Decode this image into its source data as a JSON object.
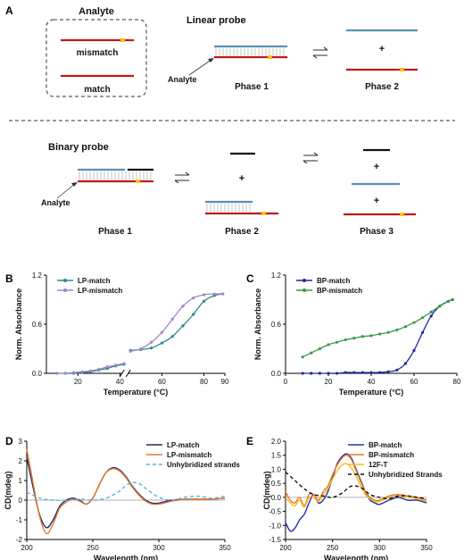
{
  "panels": {
    "A": "A",
    "B": "B",
    "C": "C",
    "D": "D",
    "E": "E"
  },
  "schematic": {
    "analyte_title": "Analyte",
    "mismatch": "mismatch",
    "match": "match",
    "linear_probe": "Linear probe",
    "binary_probe": "Binary probe",
    "analyte_label": "Analyte",
    "phase1": "Phase 1",
    "phase2": "Phase 2",
    "phase3": "Phase 3",
    "plus": "+",
    "colors": {
      "red": "#c0171c",
      "blue": "#5a8fb5",
      "black": "#111111",
      "yellow": "#f2c316"
    }
  },
  "chart_data": [
    {
      "id": "B",
      "type": "scatter",
      "xlabel": "Temperature (°C)",
      "ylabel": "Norm. Absorbance",
      "ylim": [
        0,
        1.2
      ],
      "xticks": [
        "20",
        "40",
        "60",
        "80",
        "90"
      ],
      "yticks": [
        "0.0",
        "0.6",
        "1.2"
      ],
      "legend_position": "top-left",
      "series": [
        {
          "name": "LP-match",
          "color": "#2a8a8c",
          "x": [
            10,
            14,
            18,
            22,
            26,
            30,
            34,
            38,
            42,
            45,
            50,
            55,
            60,
            65,
            70,
            75,
            80,
            85,
            89
          ],
          "y": [
            0.0,
            0.0,
            0.0,
            0.01,
            0.02,
            0.04,
            0.06,
            0.09,
            0.11,
            0.28,
            0.29,
            0.31,
            0.37,
            0.45,
            0.58,
            0.72,
            0.88,
            0.95,
            0.97
          ]
        },
        {
          "name": "LP-mismatch",
          "color": "#9a88c8",
          "x": [
            10,
            14,
            18,
            22,
            26,
            30,
            34,
            38,
            42,
            45,
            50,
            55,
            60,
            65,
            70,
            75,
            80,
            85,
            89
          ],
          "y": [
            0.0,
            0.0,
            0.01,
            0.02,
            0.03,
            0.05,
            0.08,
            0.1,
            0.12,
            0.27,
            0.3,
            0.38,
            0.5,
            0.66,
            0.82,
            0.92,
            0.96,
            0.97,
            0.97
          ]
        }
      ]
    },
    {
      "id": "C",
      "type": "scatter",
      "xlabel": "Temperature (°C)",
      "ylabel": "Norm. Absorbance",
      "xlim": [
        0,
        80
      ],
      "ylim": [
        0,
        1.2
      ],
      "xticks": [
        "0",
        "20",
        "40",
        "60",
        "80"
      ],
      "yticks": [
        "0.0",
        "0.6",
        "1.2"
      ],
      "legend_position": "top-left",
      "series": [
        {
          "name": "BP-match",
          "color": "#1f2a9a",
          "x": [
            8,
            12,
            16,
            20,
            24,
            28,
            32,
            36,
            40,
            44,
            48,
            52,
            56,
            60,
            64,
            68,
            72,
            76,
            78
          ],
          "y": [
            0.0,
            0.0,
            0.0,
            0.0,
            0.0,
            0.01,
            0.01,
            0.01,
            0.01,
            0.01,
            0.02,
            0.04,
            0.12,
            0.28,
            0.5,
            0.7,
            0.82,
            0.88,
            0.9
          ]
        },
        {
          "name": "BP-mismatch",
          "color": "#3a9a4a",
          "x": [
            8,
            12,
            16,
            20,
            24,
            28,
            32,
            36,
            40,
            44,
            48,
            52,
            56,
            60,
            64,
            68,
            72,
            76,
            78
          ],
          "y": [
            0.2,
            0.25,
            0.3,
            0.35,
            0.38,
            0.41,
            0.43,
            0.45,
            0.46,
            0.48,
            0.5,
            0.53,
            0.57,
            0.62,
            0.68,
            0.75,
            0.82,
            0.88,
            0.9
          ]
        }
      ]
    },
    {
      "id": "D",
      "type": "line",
      "xlabel": "Wavelength (nm)",
      "ylabel": "CD(mdeg)",
      "xlim": [
        200,
        350
      ],
      "ylim": [
        -2,
        3
      ],
      "xticks": [
        "200",
        "250",
        "300",
        "350"
      ],
      "yticks": [
        "-2",
        "-1",
        "0",
        "1",
        "2",
        "3"
      ],
      "legend_position": "top-right",
      "series": [
        {
          "name": "LP-match",
          "color": "#1f2a6e",
          "dash": false,
          "x": [
            200,
            205,
            210,
            215,
            220,
            225,
            230,
            235,
            240,
            245,
            250,
            255,
            260,
            265,
            270,
            275,
            280,
            285,
            290,
            295,
            300,
            310,
            320,
            330,
            340,
            350
          ],
          "y": [
            2.2,
            0.6,
            -0.8,
            -1.4,
            -1.0,
            -0.3,
            0.0,
            0.1,
            0.0,
            -0.2,
            0.1,
            0.8,
            1.4,
            1.65,
            1.55,
            1.2,
            0.7,
            0.3,
            0.0,
            -0.15,
            -0.15,
            0.0,
            0.05,
            0.05,
            0.05,
            0.1
          ]
        },
        {
          "name": "LP-mismatch",
          "color": "#e8782a",
          "dash": false,
          "x": [
            200,
            205,
            210,
            215,
            220,
            225,
            230,
            235,
            240,
            245,
            250,
            255,
            260,
            265,
            270,
            275,
            280,
            285,
            290,
            295,
            300,
            310,
            320,
            330,
            340,
            350
          ],
          "y": [
            2.6,
            0.8,
            -0.9,
            -1.7,
            -1.2,
            -0.4,
            -0.1,
            0.05,
            -0.05,
            -0.2,
            0.1,
            0.8,
            1.4,
            1.6,
            1.5,
            1.15,
            0.65,
            0.25,
            -0.05,
            -0.2,
            -0.2,
            -0.05,
            0.05,
            0.05,
            0.05,
            0.1
          ]
        },
        {
          "name": "Unhybridized strands",
          "color": "#5ab2d6",
          "dash": true,
          "x": [
            200,
            210,
            220,
            230,
            240,
            250,
            260,
            270,
            275,
            280,
            285,
            290,
            300,
            310,
            320,
            330,
            340,
            350
          ],
          "y": [
            0.4,
            0.1,
            0.0,
            0.0,
            0.05,
            0.0,
            0.1,
            0.45,
            0.75,
            0.9,
            0.85,
            0.6,
            0.15,
            0.0,
            0.15,
            0.2,
            0.1,
            0.2
          ]
        }
      ]
    },
    {
      "id": "E",
      "type": "line",
      "xlabel": "Wavelength (nm)",
      "ylabel": "CD(mdeg)",
      "xlim": [
        200,
        350
      ],
      "ylim": [
        -1.5,
        2
      ],
      "xticks": [
        "200",
        "250",
        "300",
        "350"
      ],
      "yticks": [
        "-1.5",
        "-1.0",
        "-0.5",
        "0.0",
        "0.5",
        "1.0",
        "1.5",
        "2.0"
      ],
      "legend_position": "top-right",
      "series": [
        {
          "name": "BP-match",
          "color": "#2230a8",
          "dash": false,
          "x": [
            200,
            205,
            210,
            215,
            220,
            225,
            230,
            235,
            240,
            245,
            250,
            255,
            260,
            265,
            270,
            275,
            280,
            285,
            290,
            295,
            300,
            310,
            320,
            330,
            340,
            350
          ],
          "y": [
            -0.9,
            -1.2,
            -1.1,
            -0.8,
            -0.6,
            -0.2,
            0.1,
            -0.2,
            -0.1,
            0.2,
            0.7,
            1.2,
            1.45,
            1.55,
            1.4,
            1.0,
            0.6,
            0.2,
            -0.1,
            -0.2,
            -0.25,
            -0.1,
            0.0,
            -0.1,
            -0.1,
            -0.2
          ]
        },
        {
          "name": "BP-mismatch",
          "color": "#e8782a",
          "dash": false,
          "x": [
            200,
            205,
            210,
            215,
            220,
            225,
            230,
            235,
            240,
            245,
            250,
            255,
            260,
            265,
            270,
            275,
            280,
            285,
            290,
            295,
            300,
            310,
            320,
            330,
            340,
            350
          ],
          "y": [
            0.2,
            -0.1,
            -0.2,
            0.0,
            -0.3,
            0.1,
            0.1,
            -0.1,
            0.2,
            0.4,
            0.8,
            1.15,
            1.4,
            1.5,
            1.35,
            0.95,
            0.55,
            0.2,
            0.0,
            -0.1,
            -0.1,
            0.05,
            0.1,
            0.05,
            0.0,
            -0.1
          ]
        },
        {
          "name": "12F-T",
          "color": "#f0be1e",
          "dash": false,
          "x": [
            200,
            205,
            210,
            215,
            220,
            225,
            230,
            235,
            240,
            245,
            250,
            255,
            260,
            265,
            270,
            275,
            280,
            285,
            290,
            295,
            300,
            310,
            320,
            330,
            340,
            350
          ],
          "y": [
            0.0,
            -0.2,
            -0.3,
            -0.1,
            -0.35,
            0.0,
            0.0,
            -0.15,
            0.1,
            0.3,
            0.65,
            0.95,
            1.15,
            1.2,
            1.05,
            0.75,
            0.4,
            0.1,
            -0.05,
            -0.15,
            -0.15,
            0.0,
            0.05,
            0.0,
            -0.05,
            -0.15
          ]
        },
        {
          "name": "Unhybridized Strands",
          "color": "#111111",
          "dash": true,
          "x": [
            200,
            210,
            220,
            230,
            240,
            250,
            260,
            270,
            280,
            290,
            300,
            310,
            320,
            330,
            340,
            350
          ],
          "y": [
            0.9,
            0.6,
            0.3,
            0.1,
            0.05,
            0.0,
            0.15,
            0.4,
            0.35,
            0.1,
            0.0,
            -0.05,
            0.05,
            0.05,
            0.0,
            -0.05
          ]
        }
      ]
    }
  ]
}
